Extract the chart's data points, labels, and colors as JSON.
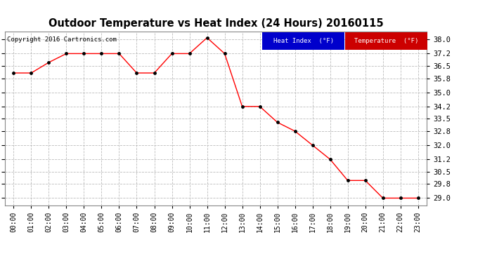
{
  "title": "Outdoor Temperature vs Heat Index (24 Hours) 20160115",
  "copyright": "Copyright 2016 Cartronics.com",
  "x_labels": [
    "00:00",
    "01:00",
    "02:00",
    "03:00",
    "04:00",
    "05:00",
    "06:00",
    "07:00",
    "08:00",
    "09:00",
    "10:00",
    "11:00",
    "12:00",
    "13:00",
    "14:00",
    "15:00",
    "16:00",
    "17:00",
    "18:00",
    "19:00",
    "20:00",
    "21:00",
    "22:00",
    "23:00"
  ],
  "temperature_values": [
    36.1,
    36.1,
    36.7,
    37.2,
    37.2,
    37.2,
    37.2,
    36.1,
    36.1,
    37.2,
    37.2,
    38.1,
    37.2,
    34.2,
    34.2,
    33.3,
    32.8,
    32.0,
    31.2,
    30.0,
    30.0,
    29.0,
    29.0,
    29.0
  ],
  "heat_index_values": [
    36.1,
    36.1,
    36.7,
    37.2,
    37.2,
    37.2,
    37.2,
    36.1,
    36.1,
    37.2,
    37.2,
    38.1,
    37.2,
    34.2,
    34.2,
    33.3,
    32.8,
    32.0,
    31.2,
    30.0,
    30.0,
    29.0,
    29.0,
    29.0
  ],
  "line_color_temp": "#ff0000",
  "ylim_min": 28.6,
  "ylim_max": 38.45,
  "yticks": [
    29.0,
    29.8,
    30.5,
    31.2,
    32.0,
    32.8,
    33.5,
    34.2,
    35.0,
    35.8,
    36.5,
    37.2,
    38.0
  ],
  "background_color": "#ffffff",
  "grid_color": "#bbbbbb",
  "legend_heat_bg": "#0000cc",
  "legend_temp_bg": "#cc0000",
  "legend_heat_text": "Heat Index  (°F)",
  "legend_temp_text": "Temperature  (°F)"
}
